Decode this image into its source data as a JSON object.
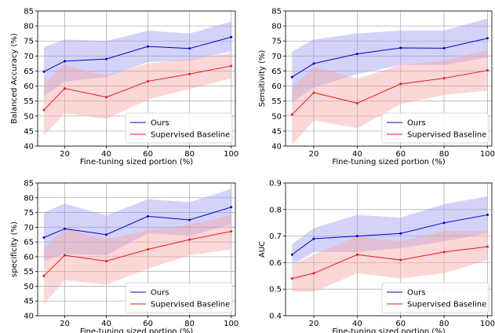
{
  "chart_data": [
    {
      "type": "line",
      "xlabel": "Fine-tuning sized portion (%)",
      "ylabel": "Balanced Accuracy (%)",
      "x": [
        10,
        20,
        40,
        60,
        80,
        100
      ],
      "xticks": [
        20,
        40,
        60,
        80,
        100
      ],
      "xlim": [
        7,
        102
      ],
      "ylim": [
        40,
        85
      ],
      "yticks": [
        40,
        45,
        50,
        55,
        60,
        65,
        70,
        75,
        80,
        85
      ],
      "grid": true,
      "legend_position": "lower-right",
      "series": [
        {
          "name": "Ours",
          "color": "#0000cc",
          "band_color": "#9e9ef5",
          "values": [
            64.8,
            68.3,
            69.0,
            73.2,
            72.5,
            76.3
          ],
          "lower": [
            56.5,
            61.5,
            63.0,
            68.0,
            68.5,
            71.5
          ],
          "upper": [
            73.0,
            75.5,
            75.0,
            78.5,
            77.5,
            81.5
          ]
        },
        {
          "name": "Supervised Baseline",
          "color": "#e8191c",
          "band_color": "#f7a6a6",
          "values": [
            52.0,
            59.2,
            56.3,
            61.6,
            64.0,
            66.7
          ],
          "lower": [
            43.5,
            51.0,
            49.0,
            55.5,
            59.0,
            62.5
          ],
          "upper": [
            61.0,
            67.0,
            63.5,
            67.5,
            69.0,
            71.0
          ]
        }
      ]
    },
    {
      "type": "line",
      "xlabel": "Fine-tuning sized portion (%)",
      "ylabel": "Sensitivity (%)",
      "x": [
        10,
        20,
        40,
        60,
        80,
        100
      ],
      "xticks": [
        20,
        40,
        60,
        80,
        100
      ],
      "xlim": [
        7,
        102
      ],
      "ylim": [
        40,
        85
      ],
      "yticks": [
        40,
        45,
        50,
        55,
        60,
        65,
        70,
        75,
        80,
        85
      ],
      "grid": true,
      "legend_position": "lower-right",
      "series": [
        {
          "name": "Ours",
          "color": "#0000cc",
          "band_color": "#9e9ef5",
          "values": [
            63.0,
            67.5,
            70.7,
            72.7,
            72.6,
            75.9
          ],
          "lower": [
            54.5,
            59.5,
            64.0,
            67.0,
            67.0,
            69.5
          ],
          "upper": [
            71.5,
            75.5,
            77.5,
            78.5,
            78.5,
            82.5
          ]
        },
        {
          "name": "Supervised Baseline",
          "color": "#e8191c",
          "band_color": "#f7a6a6",
          "values": [
            50.5,
            57.8,
            54.3,
            60.7,
            62.6,
            65.2
          ],
          "lower": [
            40.5,
            48.5,
            46.0,
            54.0,
            57.0,
            58.5
          ],
          "upper": [
            59.5,
            66.5,
            62.5,
            67.0,
            68.5,
            72.0
          ]
        }
      ]
    },
    {
      "type": "line",
      "xlabel": "Fine-tuning sized portion (%)",
      "ylabel": "specificity (%)",
      "x": [
        10,
        20,
        40,
        60,
        80,
        100
      ],
      "xticks": [
        20,
        40,
        60,
        80,
        100
      ],
      "xlim": [
        7,
        102
      ],
      "ylim": [
        40,
        85
      ],
      "yticks": [
        40,
        45,
        50,
        55,
        60,
        65,
        70,
        75,
        80,
        85
      ],
      "grid": true,
      "legend_position": "lower-right",
      "series": [
        {
          "name": "Ours",
          "color": "#0000cc",
          "band_color": "#9e9ef5",
          "values": [
            66.5,
            69.5,
            67.5,
            73.7,
            72.5,
            76.8
          ],
          "lower": [
            58.5,
            61.0,
            60.5,
            68.0,
            67.0,
            71.0
          ],
          "upper": [
            75.0,
            78.0,
            74.0,
            79.5,
            78.5,
            83.0
          ]
        },
        {
          "name": "Supervised Baseline",
          "color": "#e8191c",
          "band_color": "#f7a6a6",
          "values": [
            53.5,
            60.5,
            58.5,
            62.5,
            65.8,
            68.6
          ],
          "lower": [
            44.0,
            52.0,
            50.5,
            56.0,
            60.5,
            62.5
          ],
          "upper": [
            63.0,
            69.5,
            66.0,
            69.0,
            71.0,
            74.0
          ]
        }
      ]
    },
    {
      "type": "line",
      "xlabel": "Fine-tuning sized portion (%)",
      "ylabel": "AUC",
      "x": [
        10,
        20,
        40,
        60,
        80,
        100
      ],
      "xticks": [
        20,
        40,
        60,
        80,
        100
      ],
      "xlim": [
        7,
        102
      ],
      "ylim": [
        0.4,
        0.9
      ],
      "yticks": [
        0.4,
        0.5,
        0.6,
        0.7,
        0.8,
        0.9
      ],
      "grid": true,
      "legend_position": "lower-right",
      "series": [
        {
          "name": "Ours",
          "color": "#0000cc",
          "band_color": "#9e9ef5",
          "values": [
            0.63,
            0.69,
            0.7,
            0.71,
            0.75,
            0.78
          ],
          "lower": [
            0.59,
            0.64,
            0.64,
            0.655,
            0.68,
            0.71
          ],
          "upper": [
            0.67,
            0.73,
            0.78,
            0.77,
            0.82,
            0.85
          ]
        },
        {
          "name": "Supervised Baseline",
          "color": "#e8191c",
          "band_color": "#f7a6a6",
          "values": [
            0.54,
            0.56,
            0.63,
            0.61,
            0.64,
            0.66
          ],
          "lower": [
            0.49,
            0.49,
            0.56,
            0.54,
            0.56,
            0.61
          ],
          "upper": [
            0.59,
            0.63,
            0.7,
            0.68,
            0.72,
            0.72
          ]
        }
      ]
    }
  ]
}
